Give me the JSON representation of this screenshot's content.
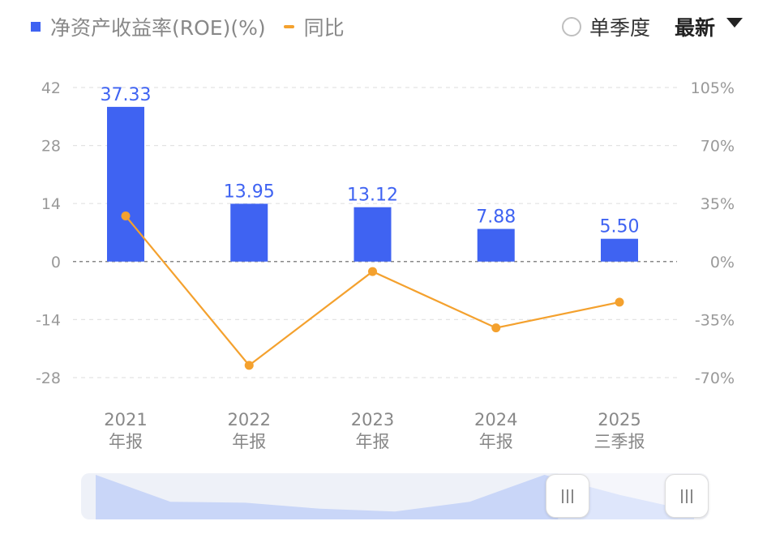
{
  "legend": {
    "bar_label": "净资产收益率(ROE)(%)",
    "line_label": "同比"
  },
  "controls": {
    "single_quarter_label": "单季度",
    "sort_label": "最新"
  },
  "colors": {
    "bar": "#3f63f2",
    "line": "#f4a12e",
    "grid": "#e3e3e3",
    "zero_line": "#888888",
    "slider_fill": "#c9d6f8",
    "slider_bg": "#eef1f8"
  },
  "chart_data": {
    "type": "bar",
    "categories": [
      [
        "2021",
        "年报"
      ],
      [
        "2022",
        "年报"
      ],
      [
        "2023",
        "年报"
      ],
      [
        "2024",
        "年报"
      ],
      [
        "2025",
        "三季报"
      ]
    ],
    "series": [
      {
        "name": "净资产收益率(ROE)(%)",
        "type": "bar",
        "axis": "left",
        "values": [
          37.33,
          13.95,
          13.12,
          7.88,
          5.5
        ],
        "labels": [
          "37.33",
          "13.95",
          "13.12",
          "7.88",
          "5.50"
        ]
      },
      {
        "name": "同比",
        "type": "line",
        "axis": "right",
        "values": [
          27.5,
          -62.6,
          -6.0,
          -40.0,
          -24.5
        ]
      }
    ],
    "y_left": {
      "ticks": [
        42,
        28,
        14,
        0,
        -14,
        -28
      ],
      "tick_labels": [
        "42",
        "28",
        "14",
        "0",
        "-14",
        "-28"
      ],
      "range": [
        -28,
        42
      ]
    },
    "y_right": {
      "ticks": [
        105,
        70,
        35,
        0,
        -35,
        -70
      ],
      "tick_labels": [
        "105%",
        "70%",
        "35%",
        "0%",
        "-35%",
        "-70%"
      ],
      "range": [
        -70,
        105
      ]
    },
    "grid": true,
    "legend_position": "top-left"
  },
  "slider": {
    "overview_values": [
      37.33,
      13.95,
      13.12,
      7.88,
      5.5,
      13.95,
      37.33,
      20,
      5.5
    ],
    "window_start": 0.76,
    "window_end": 1.0
  }
}
